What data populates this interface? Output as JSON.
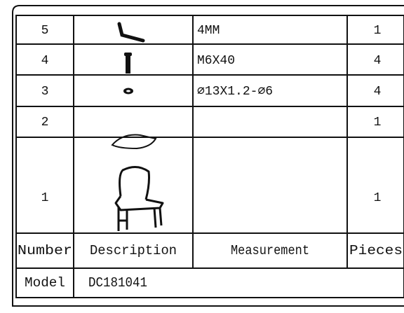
{
  "table": {
    "rows": [
      {
        "number": "5",
        "measurement": "4MM",
        "pieces": "1"
      },
      {
        "number": "4",
        "measurement": "M6X40",
        "pieces": "4"
      },
      {
        "number": "3",
        "measurement": "⌀13X1.2-⌀6",
        "pieces": "4"
      },
      {
        "number": "2",
        "pieces": "1"
      },
      {
        "number": "1",
        "pieces": "1"
      }
    ],
    "header": [
      "Number",
      "Description",
      "Measurement",
      "Pieces"
    ],
    "model": {
      "label": "Model",
      "value": "DC181041"
    }
  }
}
